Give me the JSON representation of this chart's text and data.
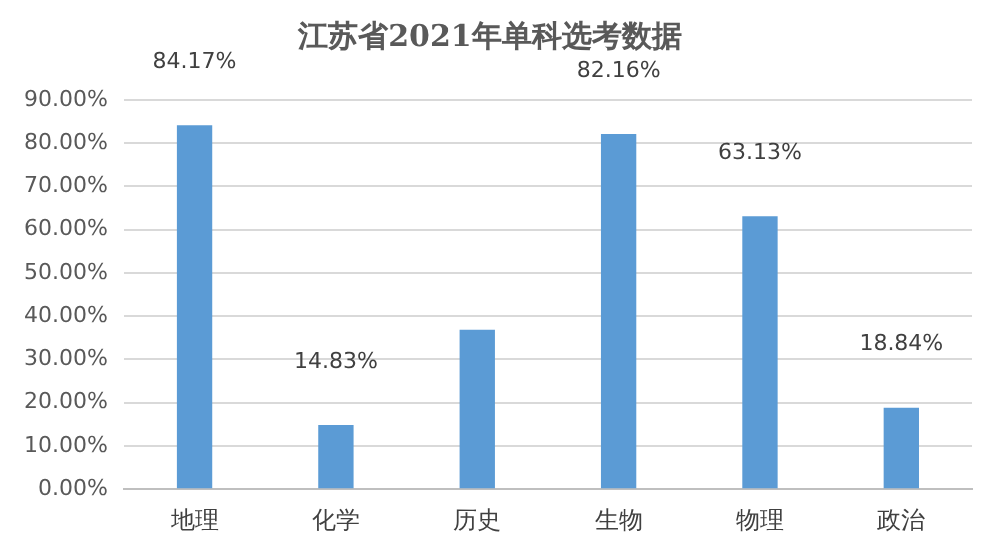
{
  "chart_data": {
    "type": "bar",
    "title": "江苏省2021年单科选考数据",
    "categories": [
      "地理",
      "化学",
      "历史",
      "生物",
      "物理",
      "政治"
    ],
    "values": [
      84.17,
      14.83,
      36.9,
      82.16,
      63.13,
      18.84
    ],
    "value_labels": [
      "84.17%",
      "14.83%",
      null,
      "82.16%",
      "63.13%",
      "18.84%"
    ],
    "color": "#5b9bd5",
    "ylim": [
      0,
      90
    ],
    "yticks": [
      {
        "value": 0,
        "label": "0.00%"
      },
      {
        "value": 10,
        "label": "10.00%"
      },
      {
        "value": 20,
        "label": "20.00%"
      },
      {
        "value": 30,
        "label": "30.00%"
      },
      {
        "value": 40,
        "label": "40.00%"
      },
      {
        "value": 50,
        "label": "50.00%"
      },
      {
        "value": 60,
        "label": "60.00%"
      },
      {
        "value": 70,
        "label": "70.00%"
      },
      {
        "value": 80,
        "label": "80.00%"
      },
      {
        "value": 90,
        "label": "90.00%"
      }
    ],
    "grid": "y",
    "legend": false
  }
}
